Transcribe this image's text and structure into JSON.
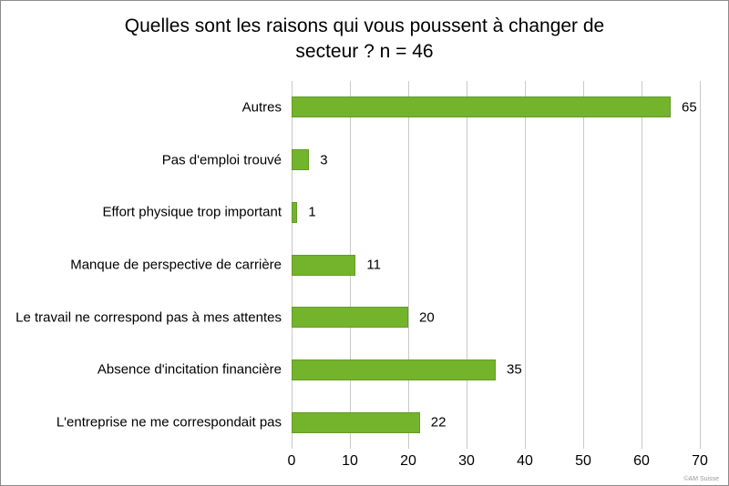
{
  "display": {
    "title_lines": [
      "Quelles sont les raisons qui vous poussent à changer de",
      "secteur ? n = 46"
    ]
  },
  "chart_data": {
    "type": "bar",
    "orientation": "horizontal",
    "title": "Quelles sont les raisons qui vous poussent à changer de secteur ? n = 46",
    "categories": [
      "Autres",
      "Pas d'emploi trouvé",
      "Effort physique trop important",
      "Manque de perspective de carrière",
      "Le travail ne correspond pas à mes attentes",
      "Absence d'incitation financière",
      "L'entreprise ne me correspondait pas"
    ],
    "values": [
      65,
      3,
      1,
      11,
      20,
      35,
      22
    ],
    "value_labels_shown": true,
    "xlabel": "",
    "ylabel": "",
    "xlim": [
      0,
      70
    ],
    "xticks": [
      0,
      10,
      20,
      30,
      40,
      50,
      60,
      70
    ],
    "grid": "vertical",
    "legend": "none",
    "bar_color": "#74b42d",
    "bar_border_color": "#629c26",
    "gridline_color": "#c9c9c9"
  },
  "footer": {
    "watermark": "©AM Suisse"
  }
}
